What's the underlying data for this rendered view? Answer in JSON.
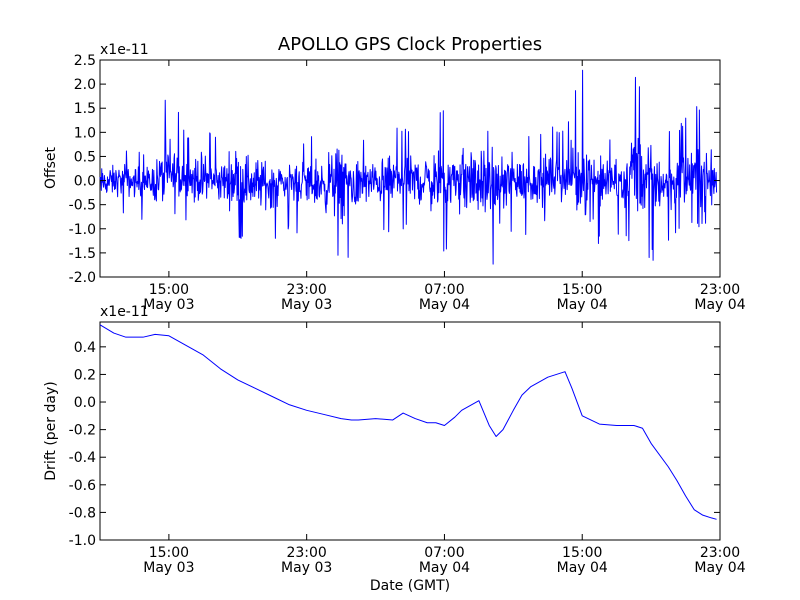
{
  "title": "APOLLO GPS Clock Properties",
  "line_color": "#0000ff",
  "chart_data": [
    {
      "type": "line",
      "name": "offset",
      "ylabel": "Offset",
      "xlabel": "",
      "multiplier_label": "x1e-11",
      "x_unit": "hours since May 03 11:00 GMT",
      "xlim": [
        0,
        36
      ],
      "ylim": [
        -2.0,
        2.5
      ],
      "xticks": [
        {
          "x": 4,
          "time": "15:00",
          "date": "May 03"
        },
        {
          "x": 12,
          "time": "23:00",
          "date": "May 03"
        },
        {
          "x": 20,
          "time": "07:00",
          "date": "May 04"
        },
        {
          "x": 28,
          "time": "15:00",
          "date": "May 04"
        },
        {
          "x": 36,
          "time": "23:00",
          "date": "May 04"
        }
      ],
      "yticks": [
        {
          "value": -2.0,
          "label": "-2.0"
        },
        {
          "value": -1.5,
          "label": "-1.5"
        },
        {
          "value": -1.0,
          "label": "-1.0"
        },
        {
          "value": -0.5,
          "label": "-0.5"
        },
        {
          "value": 0.0,
          "label": "0.0"
        },
        {
          "value": 0.5,
          "label": "0.5"
        },
        {
          "value": 1.0,
          "label": "1.0"
        },
        {
          "value": 1.5,
          "label": "1.5"
        },
        {
          "value": 2.0,
          "label": "2.0"
        },
        {
          "value": 2.5,
          "label": "2.5"
        }
      ],
      "envelope": {
        "x": [
          0,
          1,
          2,
          3,
          4,
          5,
          6,
          7,
          8,
          9,
          10,
          11,
          12,
          13,
          14,
          15,
          16,
          17,
          18,
          19,
          20,
          21,
          22,
          23,
          24,
          25,
          26,
          27,
          28,
          29,
          30,
          31,
          32,
          33,
          34,
          35,
          35.8
        ],
        "ymin": [
          -0.9,
          -0.7,
          -0.8,
          -0.9,
          -1.4,
          -0.9,
          -1.0,
          -1.0,
          -1.2,
          -1.4,
          -1.3,
          -1.0,
          -1.2,
          -1.5,
          -1.7,
          -1.6,
          -1.0,
          -1.1,
          -1.0,
          -1.3,
          -1.7,
          -1.4,
          -1.6,
          -1.9,
          -1.0,
          -1.2,
          -0.9,
          -0.8,
          -1.7,
          -1.3,
          -1.2,
          -1.3,
          -1.7,
          -1.3,
          -1.0,
          -1.0,
          -1.0
        ],
        "ymax": [
          0.5,
          0.7,
          0.6,
          0.6,
          2.2,
          1.0,
          1.2,
          0.8,
          1.7,
          1.0,
          0.8,
          0.8,
          0.9,
          1.0,
          1.7,
          0.9,
          0.8,
          1.2,
          1.1,
          1.2,
          1.5,
          1.6,
          1.3,
          1.0,
          1.1,
          1.0,
          1.2,
          1.1,
          2.5,
          1.1,
          0.9,
          2.5,
          1.5,
          1.0,
          1.3,
          1.8,
          1.2
        ]
      },
      "samples": 1400
    },
    {
      "type": "line",
      "name": "drift",
      "ylabel": "Drift (per day)",
      "xlabel": "Date (GMT)",
      "multiplier_label": "x1e-11",
      "x_unit": "hours since May 03 11:00 GMT",
      "xlim": [
        0,
        36
      ],
      "ylim": [
        -1.0,
        0.58
      ],
      "xticks": [
        {
          "x": 4,
          "time": "15:00",
          "date": "May 03"
        },
        {
          "x": 12,
          "time": "23:00",
          "date": "May 03"
        },
        {
          "x": 20,
          "time": "07:00",
          "date": "May 04"
        },
        {
          "x": 28,
          "time": "15:00",
          "date": "May 04"
        },
        {
          "x": 36,
          "time": "23:00",
          "date": "May 04"
        }
      ],
      "yticks": [
        {
          "value": -1.0,
          "label": "-1.0"
        },
        {
          "value": -0.8,
          "label": "-0.8"
        },
        {
          "value": -0.6,
          "label": "-0.6"
        },
        {
          "value": -0.4,
          "label": "-0.4"
        },
        {
          "value": -0.2,
          "label": "-0.2"
        },
        {
          "value": 0.0,
          "label": "0.0"
        },
        {
          "value": 0.2,
          "label": "0.2"
        },
        {
          "value": 0.4,
          "label": "0.4"
        }
      ],
      "x": [
        0,
        0.8,
        1.5,
        2.5,
        3.2,
        4.0,
        5.0,
        6.0,
        7.0,
        8.0,
        9.0,
        10.0,
        11.0,
        12.0,
        13.0,
        14.0,
        14.6,
        15.0,
        16.0,
        17.0,
        17.6,
        18.3,
        19.0,
        19.5,
        20.0,
        20.6,
        21.0,
        22.0,
        22.6,
        23.0,
        23.4,
        24.0,
        24.5,
        25.0,
        26.0,
        27.0,
        27.4,
        28.0,
        29.0,
        30.0,
        31.0,
        31.5,
        32.0,
        33.0,
        33.5,
        34.0,
        34.5,
        35.0,
        35.5,
        35.8
      ],
      "y": [
        0.56,
        0.5,
        0.47,
        0.47,
        0.49,
        0.48,
        0.41,
        0.34,
        0.24,
        0.16,
        0.1,
        0.04,
        -0.02,
        -0.06,
        -0.09,
        -0.12,
        -0.13,
        -0.13,
        -0.12,
        -0.13,
        -0.08,
        -0.12,
        -0.15,
        -0.15,
        -0.17,
        -0.11,
        -0.06,
        0.01,
        -0.17,
        -0.25,
        -0.2,
        -0.06,
        0.05,
        0.11,
        0.18,
        0.22,
        0.1,
        -0.1,
        -0.16,
        -0.17,
        -0.17,
        -0.19,
        -0.3,
        -0.47,
        -0.57,
        -0.68,
        -0.78,
        -0.82,
        -0.84,
        -0.85
      ]
    }
  ]
}
